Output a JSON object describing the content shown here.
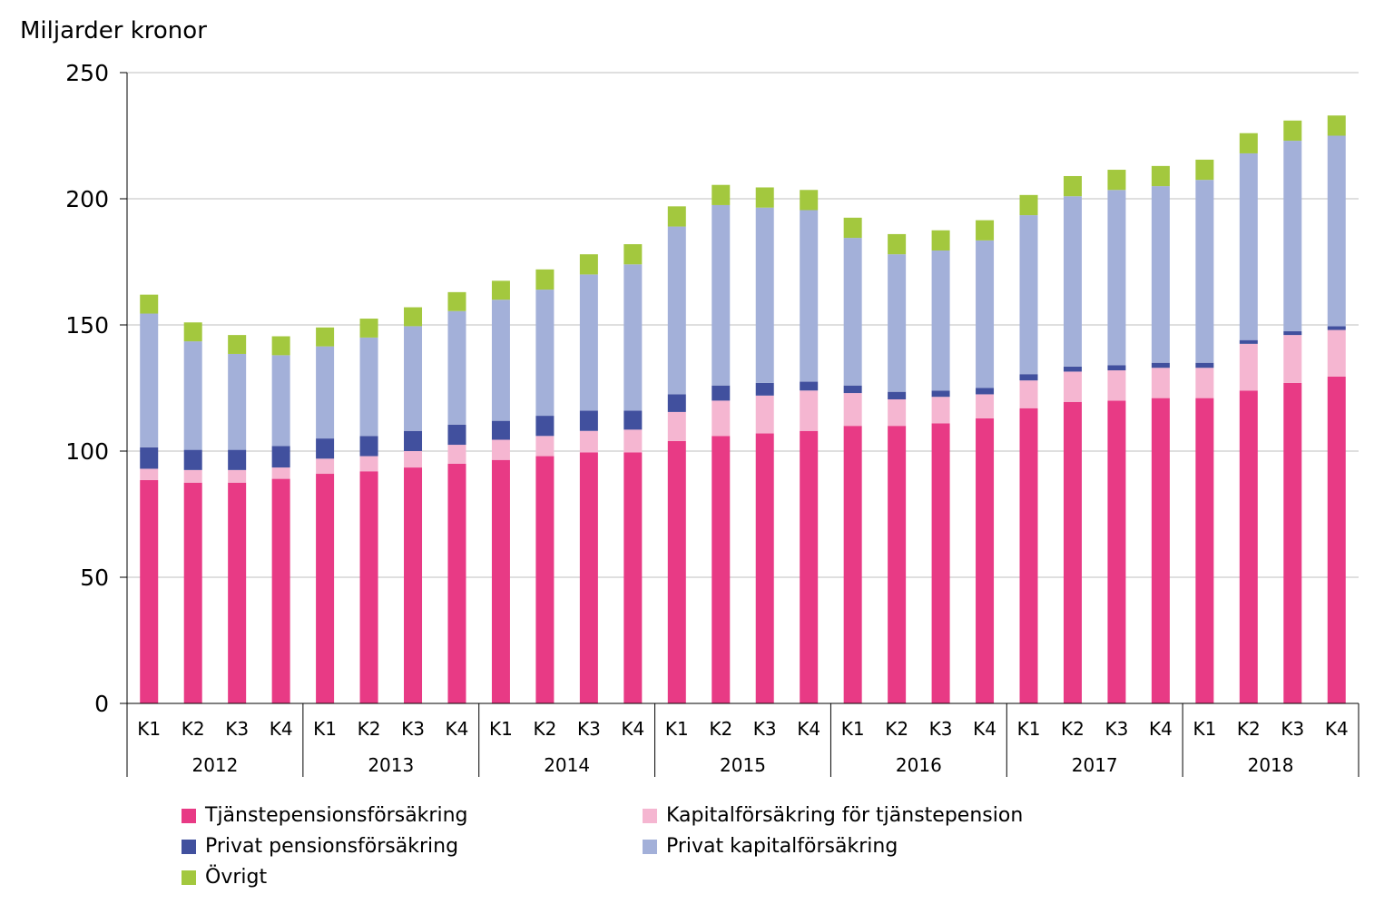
{
  "chart_data": {
    "type": "bar",
    "stacked": true,
    "ylabel": "Miljarder kronor",
    "ylim": [
      0,
      250
    ],
    "yticks": [
      0,
      50,
      100,
      150,
      200,
      250
    ],
    "grid": true,
    "legend_position": "bottom",
    "years": [
      "2012",
      "2013",
      "2014",
      "2015",
      "2016",
      "2017",
      "2018"
    ],
    "quarters": [
      "K1",
      "K2",
      "K3",
      "K4"
    ],
    "categories": [
      "K1",
      "K2",
      "K3",
      "K4",
      "K1",
      "K2",
      "K3",
      "K4",
      "K1",
      "K2",
      "K3",
      "K4",
      "K1",
      "K2",
      "K3",
      "K4",
      "K1",
      "K2",
      "K3",
      "K4",
      "K1",
      "K2",
      "K3",
      "K4",
      "K1",
      "K2",
      "K3",
      "K4"
    ],
    "series": [
      {
        "name": "Tjänstepensionsförsäkring",
        "color": "#e83a85",
        "values": [
          88.5,
          87.5,
          87.5,
          89,
          91,
          92,
          93.5,
          95,
          96.5,
          98,
          99.5,
          99.5,
          104,
          106,
          107,
          108,
          110,
          110,
          111,
          113,
          117,
          119.5,
          120,
          121,
          121,
          124,
          127,
          129.5
        ]
      },
      {
        "name": "Kapitalförsäkring för tjänstepension",
        "color": "#f5b6d1",
        "values": [
          4.5,
          5,
          5,
          4.5,
          6,
          6,
          6.5,
          7.5,
          8,
          8,
          8.5,
          9,
          11.5,
          14,
          15,
          16,
          13,
          10.5,
          10.5,
          9.5,
          11,
          12,
          12,
          12,
          12,
          18.5,
          19,
          18.5
        ]
      },
      {
        "name": "Privat pensionsförsäkring",
        "color": "#41509e",
        "values": [
          8.5,
          8,
          8,
          8.5,
          8,
          8,
          8,
          8,
          7.5,
          8,
          8,
          7.5,
          7,
          6,
          5,
          3.5,
          3,
          3,
          2.5,
          2.5,
          2.5,
          2,
          2,
          2,
          2,
          1.5,
          1.5,
          1.5
        ]
      },
      {
        "name": "Privat kapitalförsäkring",
        "color": "#a3b0d9",
        "values": [
          53,
          43,
          38,
          36,
          36.5,
          39,
          41.5,
          45,
          48,
          50,
          54,
          58,
          66.5,
          71.5,
          69.5,
          68,
          58.5,
          54.5,
          55.5,
          58.5,
          63,
          67.5,
          69.5,
          70,
          72.5,
          74,
          75.5,
          75.5
        ]
      },
      {
        "name": "Övrigt",
        "color": "#a3c83e",
        "values": [
          7.5,
          7.5,
          7.5,
          7.5,
          7.5,
          7.5,
          7.5,
          7.5,
          7.5,
          8,
          8,
          8,
          8,
          8,
          8,
          8,
          8,
          8,
          8,
          8,
          8,
          8,
          8,
          8,
          8,
          8,
          8,
          8
        ]
      }
    ]
  }
}
